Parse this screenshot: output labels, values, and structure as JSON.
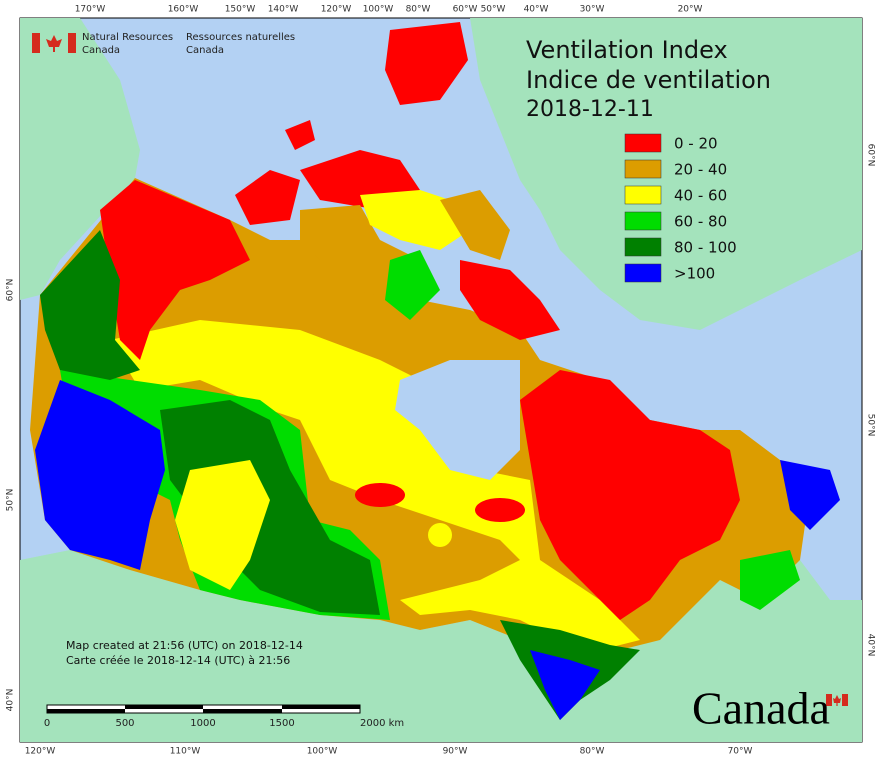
{
  "header": {
    "agency_en": [
      "Natural Resources",
      "Canada"
    ],
    "agency_fr": [
      "Ressources naturelles",
      "Canada"
    ]
  },
  "title": [
    "Ventilation Index",
    "Indice de ventilation",
    "2018-12-11"
  ],
  "legend": {
    "items": [
      {
        "label": "0 - 20",
        "color": "#ff0000"
      },
      {
        "label": "20 - 40",
        "color": "#dc9d00"
      },
      {
        "label": "40 - 60",
        "color": "#ffff00"
      },
      {
        "label": "60 - 80",
        "color": "#00dd00"
      },
      {
        "label": "80 - 100",
        "color": "#008000"
      },
      {
        "label": ">100",
        "color": "#0000ff"
      }
    ]
  },
  "graticule": {
    "top": [
      "170°W",
      "160°W",
      "150°W",
      "140°W",
      "120°W",
      "100°W",
      "80°W",
      "60°W",
      "50°W",
      "40°W",
      "30°W",
      "20°W"
    ],
    "bottom": [
      "120°W",
      "110°W",
      "100°W",
      "90°W",
      "80°W",
      "70°W"
    ],
    "left": [
      "60°N",
      "50°N",
      "40°N"
    ],
    "right": [
      "60°N",
      "50°N",
      "40°N"
    ]
  },
  "notes": [
    "Map created at 21:56 (UTC) on 2018-12-14",
    "Carte créée le 2018-12-14 (UTC) à 21:56"
  ],
  "scale_bar": [
    "0",
    "500",
    "1000",
    "1500",
    "2000 km"
  ],
  "wordmark": "Canada"
}
